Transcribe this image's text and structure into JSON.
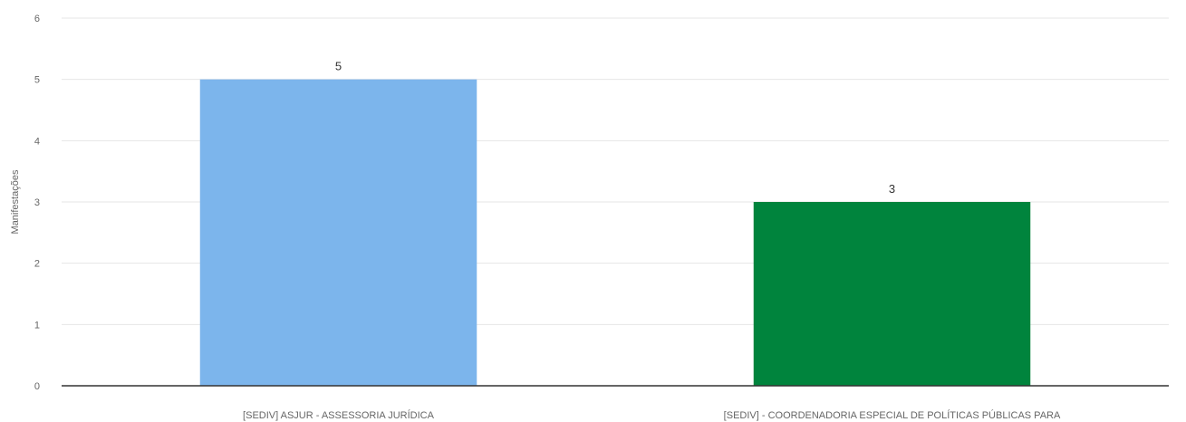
{
  "chart_data": {
    "type": "bar",
    "title": "",
    "xlabel": "",
    "ylabel": "Manifestações",
    "ylim": [
      0,
      6
    ],
    "yticks": [
      0,
      1,
      2,
      3,
      4,
      5,
      6
    ],
    "grid": true,
    "legend": "none",
    "categories": [
      "[SEDIV] ASJUR - ASSESSORIA JURÍDICA",
      "[SEDIV] - COORDENADORIA ESPECIAL DE POLÍTICAS PÚBLICAS PARA"
    ],
    "values": [
      5,
      3
    ],
    "data_labels": [
      "5",
      "3"
    ],
    "colors": [
      "#7cb5ec",
      "#00843d"
    ]
  }
}
